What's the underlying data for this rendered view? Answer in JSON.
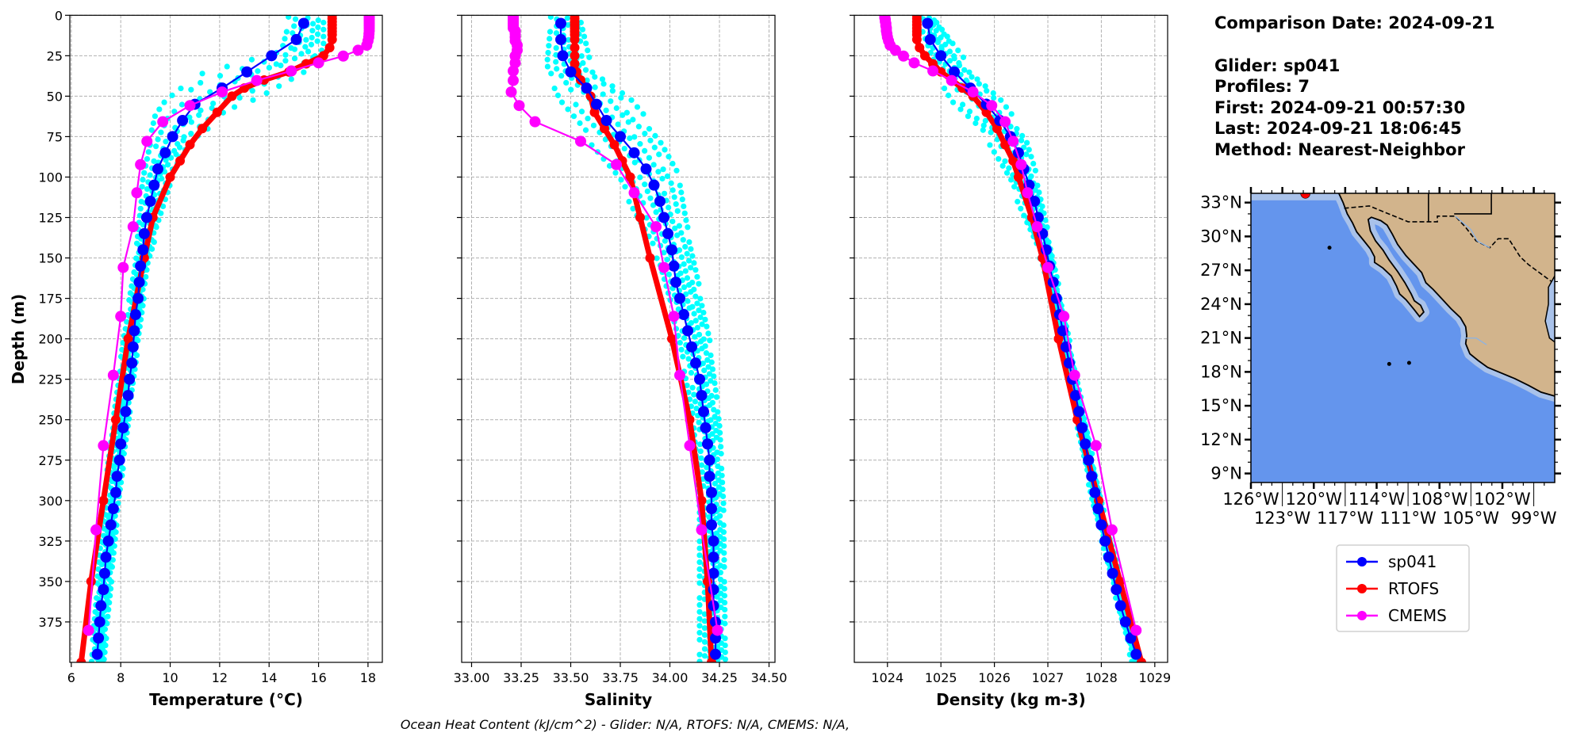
{
  "info": {
    "comparison_date": "Comparison Date: 2024-09-21",
    "glider": "Glider: sp041",
    "profiles": "Profiles: 7",
    "first": "First: 2024-09-21 00:57:30",
    "last": "Last: 2024-09-21 18:06:45",
    "method": "Method: Nearest-Neighbor"
  },
  "caption": "Ocean Heat Content (kJ/cm^2) - Glider: N/A,  RTOFS: N/A,  CMEMS: N/A,",
  "legend": {
    "placement": "right",
    "items": [
      {
        "label": "sp041",
        "color": "#0000ff"
      },
      {
        "label": "RTOFS",
        "color": "#ff0000"
      },
      {
        "label": "CMEMS",
        "color": "#ff00ff"
      }
    ]
  },
  "colors": {
    "glider": "#0000ff",
    "glider_profiles": "#00ffff",
    "rtofs": "#ff0000",
    "cmems": "#ff00ff",
    "ocean": "#6495ed",
    "shelf": "#a9c2ea",
    "land": "#d2b48c",
    "glider_marker": "#ff0000"
  },
  "chart_data": [
    {
      "type": "line",
      "variable": "temperature",
      "xlabel": "Temperature (°C)",
      "ylabel": "Depth (m)",
      "xlim": [
        5.94,
        18.58
      ],
      "ylim": [
        400,
        0
      ],
      "grid": true,
      "xticks": [
        "6",
        "8",
        "10",
        "12",
        "14",
        "16",
        "18"
      ],
      "yticks": [
        "0",
        "25",
        "50",
        "75",
        "100",
        "125",
        "150",
        "175",
        "200",
        "225",
        "250",
        "275",
        "300",
        "325",
        "350",
        "375"
      ],
      "glider": {
        "depth": [
          5,
          15,
          25,
          35,
          45,
          55,
          65,
          75,
          85,
          95,
          105,
          115,
          125,
          135,
          145,
          155,
          165,
          175,
          185,
          195,
          205,
          215,
          225,
          235,
          245,
          255,
          265,
          275,
          285,
          295,
          305,
          315,
          325,
          335,
          345,
          355,
          365,
          375,
          385,
          395
        ],
        "values": [
          15.4,
          15.1,
          14.1,
          13.1,
          12.1,
          11.0,
          10.5,
          10.1,
          9.8,
          9.5,
          9.35,
          9.2,
          9.05,
          8.95,
          8.9,
          8.8,
          8.75,
          8.7,
          8.6,
          8.55,
          8.5,
          8.45,
          8.35,
          8.3,
          8.2,
          8.1,
          8.0,
          7.95,
          7.85,
          7.8,
          7.7,
          7.6,
          7.5,
          7.4,
          7.35,
          7.3,
          7.2,
          7.15,
          7.1,
          7.05
        ]
      },
      "glider_profiles_range": [
        [
          0,
          14.8,
          16.2
        ],
        [
          20,
          14.5,
          16.2
        ],
        [
          30,
          12.5,
          15.5
        ],
        [
          40,
          10.5,
          14.5
        ],
        [
          50,
          9.8,
          13.5
        ],
        [
          60,
          9.4,
          12.0
        ],
        [
          75,
          9.2,
          10.8
        ],
        [
          100,
          8.9,
          10.0
        ],
        [
          150,
          8.6,
          9.1
        ],
        [
          200,
          8.1,
          8.7
        ],
        [
          300,
          7.3,
          7.9
        ],
        [
          400,
          6.8,
          7.3
        ]
      ],
      "rtofs": {
        "depth": [
          0,
          2,
          4,
          6,
          8,
          10,
          12,
          15,
          20,
          25,
          30,
          35,
          40,
          45,
          50,
          60,
          70,
          80,
          90,
          100,
          125,
          150,
          200,
          250,
          300,
          350,
          400
        ],
        "values": [
          16.55,
          16.55,
          16.55,
          16.55,
          16.55,
          16.55,
          16.55,
          16.55,
          16.45,
          16.2,
          15.5,
          14.8,
          13.8,
          13.0,
          12.5,
          11.9,
          11.3,
          10.8,
          10.4,
          10.0,
          9.3,
          8.95,
          8.3,
          7.8,
          7.3,
          6.8,
          6.4
        ]
      },
      "cmems": {
        "depth": [
          0.5,
          1.5,
          2.6,
          3.8,
          5.1,
          6.4,
          7.9,
          9.6,
          11.4,
          13.5,
          15.8,
          18.5,
          21.6,
          25.2,
          29.4,
          34.4,
          40.3,
          47.4,
          55.8,
          65.8,
          77.9,
          92.3,
          109.7,
          130.7,
          155.9,
          186.1,
          222.5,
          266.0,
          318.1,
          380.2
        ],
        "values": [
          18.05,
          18.05,
          18.05,
          18.05,
          18.05,
          18.05,
          18.05,
          18.05,
          18.04,
          18.03,
          18.0,
          17.95,
          17.6,
          17.0,
          16.0,
          14.9,
          13.5,
          12.1,
          10.8,
          9.7,
          9.06,
          8.8,
          8.65,
          8.5,
          8.1,
          8.0,
          7.7,
          7.3,
          7.0,
          6.7
        ]
      }
    },
    {
      "type": "line",
      "variable": "salinity",
      "xlabel": "Salinity",
      "xlim": [
        32.95,
        34.53
      ],
      "ylim": [
        400,
        0
      ],
      "grid": true,
      "xticks": [
        "33.00",
        "33.25",
        "33.50",
        "33.75",
        "34.00",
        "34.25",
        "34.50"
      ],
      "glider": {
        "depth": [
          5,
          15,
          25,
          35,
          45,
          55,
          65,
          75,
          85,
          95,
          105,
          115,
          125,
          135,
          145,
          155,
          165,
          175,
          185,
          195,
          205,
          215,
          225,
          235,
          245,
          255,
          265,
          275,
          285,
          295,
          305,
          315,
          325,
          335,
          345,
          355,
          365,
          375,
          385,
          395
        ],
        "values": [
          33.45,
          33.45,
          33.46,
          33.5,
          33.58,
          33.63,
          33.68,
          33.75,
          33.82,
          33.88,
          33.92,
          33.95,
          33.97,
          33.99,
          34.01,
          34.02,
          34.03,
          34.05,
          34.07,
          34.09,
          34.11,
          34.13,
          34.15,
          34.16,
          34.17,
          34.18,
          34.19,
          34.2,
          34.2,
          34.21,
          34.21,
          34.21,
          34.22,
          34.22,
          34.22,
          34.22,
          34.22,
          34.23,
          34.23,
          34.23
        ]
      },
      "glider_profiles_range": [
        [
          0,
          33.4,
          33.55
        ],
        [
          30,
          33.38,
          33.6
        ],
        [
          50,
          33.45,
          33.8
        ],
        [
          75,
          33.6,
          33.95
        ],
        [
          100,
          33.75,
          34.05
        ],
        [
          125,
          33.85,
          34.08
        ],
        [
          150,
          33.95,
          34.12
        ],
        [
          200,
          34.05,
          34.2
        ],
        [
          250,
          34.12,
          34.25
        ],
        [
          300,
          34.15,
          34.27
        ],
        [
          400,
          34.15,
          34.28
        ]
      ],
      "rtofs": {
        "depth": [
          0,
          2,
          4,
          6,
          8,
          10,
          12,
          15,
          20,
          25,
          30,
          35,
          40,
          45,
          50,
          60,
          70,
          80,
          90,
          100,
          125,
          150,
          200,
          250,
          300,
          350,
          400
        ],
        "values": [
          33.52,
          33.52,
          33.52,
          33.52,
          33.52,
          33.52,
          33.52,
          33.52,
          33.52,
          33.52,
          33.52,
          33.53,
          33.55,
          33.58,
          33.6,
          33.62,
          33.67,
          33.72,
          33.76,
          33.8,
          33.85,
          33.9,
          34.01,
          34.1,
          34.16,
          34.19,
          34.21
        ]
      },
      "cmems": {
        "depth": [
          0.5,
          1.5,
          2.6,
          3.8,
          5.1,
          6.4,
          7.9,
          9.6,
          11.4,
          13.5,
          15.8,
          18.5,
          21.6,
          25.2,
          29.4,
          34.4,
          40.3,
          47.4,
          55.8,
          65.8,
          77.9,
          92.3,
          109.7,
          130.7,
          155.9,
          186.1,
          222.5,
          266.0,
          318.1,
          380.2
        ],
        "values": [
          33.21,
          33.21,
          33.21,
          33.21,
          33.21,
          33.21,
          33.21,
          33.22,
          33.22,
          33.22,
          33.22,
          33.23,
          33.23,
          33.22,
          33.22,
          33.21,
          33.21,
          33.2,
          33.24,
          33.32,
          33.55,
          33.73,
          33.82,
          33.93,
          33.97,
          34.02,
          34.05,
          34.1,
          34.16,
          34.24
        ]
      }
    },
    {
      "type": "line",
      "variable": "density",
      "xlabel": "Density (kg m-3)",
      "xlim": [
        1023.38,
        1029.24
      ],
      "ylim": [
        400,
        0
      ],
      "grid": true,
      "xticks": [
        "1024",
        "1025",
        "1026",
        "1027",
        "1028",
        "1029"
      ],
      "glider": {
        "depth": [
          5,
          15,
          25,
          35,
          45,
          55,
          65,
          75,
          85,
          95,
          105,
          115,
          125,
          135,
          145,
          155,
          165,
          175,
          185,
          195,
          205,
          215,
          225,
          235,
          245,
          255,
          265,
          275,
          285,
          295,
          305,
          315,
          325,
          335,
          345,
          355,
          365,
          375,
          385,
          395
        ],
        "values": [
          1024.75,
          1024.8,
          1025.0,
          1025.25,
          1025.55,
          1025.85,
          1026.1,
          1026.3,
          1026.45,
          1026.55,
          1026.65,
          1026.75,
          1026.82,
          1026.9,
          1026.97,
          1027.03,
          1027.1,
          1027.16,
          1027.22,
          1027.28,
          1027.34,
          1027.4,
          1027.46,
          1027.52,
          1027.58,
          1027.64,
          1027.7,
          1027.76,
          1027.82,
          1027.88,
          1027.94,
          1028.0,
          1028.07,
          1028.14,
          1028.21,
          1028.28,
          1028.36,
          1028.45,
          1028.55,
          1028.65
        ]
      },
      "glider_profiles_range": [
        [
          0,
          1024.6,
          1024.9
        ],
        [
          30,
          1024.9,
          1025.5
        ],
        [
          50,
          1025.2,
          1026.1
        ],
        [
          75,
          1025.9,
          1026.6
        ],
        [
          100,
          1026.3,
          1026.8
        ],
        [
          150,
          1026.9,
          1027.1
        ],
        [
          200,
          1027.25,
          1027.4
        ],
        [
          300,
          1027.85,
          1028.0
        ],
        [
          400,
          1028.6,
          1028.75
        ]
      ],
      "rtofs": {
        "depth": [
          0,
          2,
          4,
          6,
          8,
          10,
          12,
          15,
          20,
          25,
          30,
          35,
          40,
          45,
          50,
          60,
          70,
          80,
          90,
          100,
          125,
          150,
          200,
          250,
          300,
          350,
          400
        ],
        "values": [
          1024.55,
          1024.55,
          1024.55,
          1024.55,
          1024.55,
          1024.55,
          1024.55,
          1024.55,
          1024.6,
          1024.7,
          1024.85,
          1025.0,
          1025.2,
          1025.4,
          1025.6,
          1025.85,
          1026.05,
          1026.2,
          1026.35,
          1026.45,
          1026.7,
          1026.9,
          1027.2,
          1027.55,
          1027.95,
          1028.35,
          1028.75
        ]
      },
      "cmems": {
        "depth": [
          0.5,
          1.5,
          2.6,
          3.8,
          5.1,
          6.4,
          7.9,
          9.6,
          11.4,
          13.5,
          15.8,
          18.5,
          21.6,
          25.2,
          29.4,
          34.4,
          40.3,
          47.4,
          55.8,
          65.8,
          77.9,
          92.3,
          109.7,
          130.7,
          155.9,
          186.1,
          222.5,
          266.0,
          318.1,
          380.2
        ],
        "values": [
          1023.95,
          1023.95,
          1023.96,
          1023.96,
          1023.97,
          1023.97,
          1023.98,
          1023.98,
          1023.99,
          1024.0,
          1024.02,
          1024.05,
          1024.15,
          1024.3,
          1024.5,
          1024.85,
          1025.2,
          1025.6,
          1025.95,
          1026.2,
          1026.35,
          1026.5,
          1026.62,
          1026.8,
          1027.0,
          1027.3,
          1027.5,
          1027.9,
          1028.2,
          1028.65
        ]
      }
    }
  ],
  "map": {
    "lon_range": [
      -126,
      -97
    ],
    "lat_range": [
      8.2,
      33.82
    ],
    "lat_ticks": [
      "33°N",
      "30°N",
      "27°N",
      "24°N",
      "21°N",
      "18°N",
      "15°N",
      "12°N",
      "9°N"
    ],
    "lon_ticks": [
      "126°W",
      "123°W",
      "120°W",
      "117°W",
      "114°W",
      "111°W",
      "108°W",
      "105°W",
      "102°W",
      "99°W"
    ],
    "glider_position": {
      "lon": -120.8,
      "lat": 33.8
    }
  }
}
